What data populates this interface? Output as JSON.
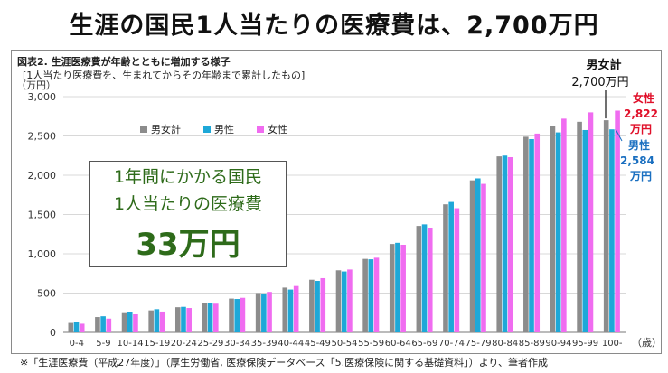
{
  "page": {
    "title": "生涯の国民1人当たりの医療費は、2,700万円",
    "figure_label": "図表2. 生涯医療費が年齢とともに増加する様子",
    "figure_subtitle": "[1人当たり医療費を、生まれてからその年齢まで累計したもの]",
    "source_note": "※「生涯医療費（平成27年度）」（厚生労働省, 医療保険データベース「5.医療保険に関する基礎資料」）より、筆者作成"
  },
  "callout": {
    "line1": "1年間にかかる国民",
    "line2": "1人当たりの医療費",
    "line3": "33万円"
  },
  "colors": {
    "total": "#8c8c8c",
    "male": "#1ea8d8",
    "female": "#f06cf0",
    "female_label": "#e0102a",
    "male_label": "#1a6fc0",
    "callout_text": "#2e6b1a"
  },
  "chart_data": {
    "type": "bar",
    "ylabel": "（万円）",
    "xlabel": "（歳）",
    "ylim": [
      0,
      3000
    ],
    "yticks": [
      0,
      500,
      1000,
      1500,
      2000,
      2500,
      3000
    ],
    "ytick_labels": [
      "0",
      "500",
      "1,000",
      "1,500",
      "2,000",
      "2,500",
      "3,000"
    ],
    "grid": true,
    "legend": "top-left",
    "categories": [
      "0-4",
      "5-9",
      "10-14",
      "15-19",
      "20-24",
      "25-29",
      "30-34",
      "35-39",
      "40-44",
      "45-49",
      "50-54",
      "55-59",
      "60-64",
      "65-69",
      "70-74",
      "75-79",
      "80-84",
      "85-89",
      "90-94",
      "95-99",
      "100-"
    ],
    "series": [
      {
        "name": "男女計",
        "values": [
          120,
          195,
          245,
          280,
          320,
          370,
          430,
          500,
          570,
          670,
          790,
          935,
          1125,
          1355,
          1630,
          1935,
          2240,
          2490,
          2625,
          2680,
          2700
        ]
      },
      {
        "name": "男性",
        "values": [
          130,
          205,
          255,
          295,
          325,
          375,
          425,
          495,
          545,
          655,
          775,
          930,
          1140,
          1375,
          1660,
          1960,
          2250,
          2460,
          2545,
          2575,
          2584
        ]
      },
      {
        "name": "女性",
        "values": [
          110,
          175,
          230,
          265,
          310,
          365,
          440,
          515,
          590,
          690,
          800,
          950,
          1115,
          1325,
          1580,
          1890,
          2230,
          2530,
          2720,
          2800,
          2822
        ]
      }
    ],
    "annotations": {
      "total_label": "男女計",
      "total_value": "2,700万円",
      "female_label": "女性",
      "female_value": "2,822",
      "female_unit": "万円",
      "male_label": "男性",
      "male_value": "2,584",
      "male_unit": "万円"
    }
  }
}
